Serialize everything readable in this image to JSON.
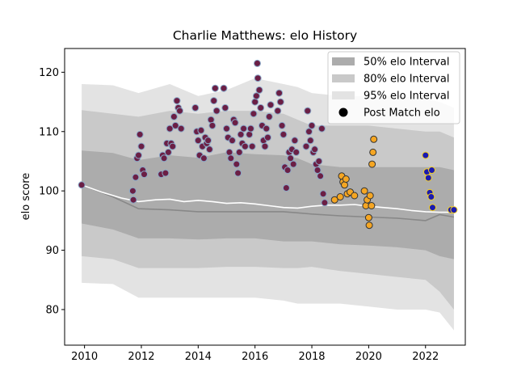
{
  "chart_data": {
    "type": "scatter",
    "title": "Charlie Matthews: elo History",
    "xlabel": "",
    "ylabel": "elo score",
    "xlim": [
      2009.3,
      2023.4
    ],
    "ylim": [
      74,
      124
    ],
    "xticks": [
      2010,
      2012,
      2014,
      2016,
      2018,
      2020,
      2022
    ],
    "yticks": [
      80,
      90,
      100,
      110,
      120
    ],
    "grid": false,
    "legend_position": "top-right",
    "colors": {
      "band_50": "#acacac",
      "band_80": "#c9c9c9",
      "band_95": "#e3e3e3",
      "median_line": "#888888",
      "post_match_line": "#ffffff",
      "marker_maroon": "#6b1f45",
      "marker_orange": "#f5a623",
      "marker_blue": "#1a1ab0"
    },
    "legend": [
      {
        "label": "50% elo Interval",
        "kind": "band",
        "color": "#acacac"
      },
      {
        "label": "80% elo Interval",
        "kind": "band",
        "color": "#c9c9c9"
      },
      {
        "label": "95% elo Interval",
        "kind": "band",
        "color": "#e3e3e3"
      },
      {
        "label": "Post Match elo",
        "kind": "marker",
        "color": "#000000"
      }
    ],
    "bands": {
      "x": [
        2009.9,
        2011.0,
        2011.9,
        2013.0,
        2014.0,
        2015.0,
        2016.0,
        2017.0,
        2017.5,
        2018.0,
        2019.0,
        2020.0,
        2021.0,
        2022.0,
        2022.5,
        2023.0
      ],
      "p95_upper": [
        118,
        117.8,
        116.5,
        118,
        116,
        117,
        119,
        118,
        117.5,
        116.5,
        116,
        116,
        116,
        115.5,
        115,
        114
      ],
      "p80_upper": [
        113.6,
        113,
        112.5,
        113.5,
        113,
        113.5,
        113.5,
        113,
        112,
        111,
        111,
        111,
        110.5,
        110,
        110,
        109
      ],
      "p50_upper": [
        106.8,
        106.4,
        105.2,
        106,
        105.6,
        106.5,
        106.2,
        106,
        105.5,
        104.5,
        104,
        104,
        104,
        104,
        104,
        103.5
      ],
      "median": [
        101,
        99,
        97,
        96.8,
        96.5,
        96.5,
        96.5,
        96.5,
        96.3,
        96.1,
        95.8,
        95.6,
        95.4,
        95,
        96,
        95.6
      ],
      "p50_lower": [
        94.5,
        93.5,
        92,
        92,
        91.8,
        92,
        92,
        91.5,
        91.5,
        91.5,
        91,
        90.8,
        90.5,
        90,
        89,
        88.5
      ],
      "p80_lower": [
        89,
        88.5,
        87,
        87,
        87,
        87.2,
        87.2,
        87,
        87,
        87.2,
        86.5,
        86,
        85.5,
        85,
        83,
        80
      ],
      "p95_lower": [
        84.5,
        84.3,
        82,
        82,
        82,
        82,
        82,
        81.5,
        81,
        81,
        81,
        80.5,
        80,
        80,
        79.5,
        76.5
      ]
    },
    "post_match_line": {
      "x": [
        2009.9,
        2010.6,
        2011.3,
        2011.9,
        2012.5,
        2013.0,
        2013.5,
        2014.0,
        2014.5,
        2015.0,
        2015.5,
        2016.0,
        2016.5,
        2017.0,
        2017.5,
        2018.0,
        2018.5,
        2019.0,
        2019.5,
        2020.0,
        2020.5,
        2021.0,
        2021.5,
        2022.0,
        2022.5,
        2023.0
      ],
      "y": [
        101,
        99.8,
        98.8,
        98.2,
        98.5,
        98.6,
        98.2,
        98.4,
        98.2,
        97.9,
        98.0,
        97.8,
        97.5,
        97.2,
        97.1,
        97.4,
        97.6,
        97.6,
        97.7,
        97.4,
        97.2,
        97.0,
        96.7,
        96.5,
        96.4,
        96.4
      ]
    },
    "series": [
      {
        "color": "#6b1f45",
        "points": [
          [
            2009.9,
            101
          ],
          [
            2011.7,
            100
          ],
          [
            2011.72,
            98.5
          ],
          [
            2011.8,
            102.3
          ],
          [
            2011.85,
            105.5
          ],
          [
            2011.9,
            106
          ],
          [
            2011.95,
            109.5
          ],
          [
            2012.0,
            107.5
          ],
          [
            2012.05,
            103.5
          ],
          [
            2012.1,
            102.8
          ],
          [
            2012.7,
            102.8
          ],
          [
            2012.75,
            106
          ],
          [
            2012.8,
            105.5
          ],
          [
            2012.85,
            103
          ],
          [
            2012.9,
            108
          ],
          [
            2012.95,
            106.5
          ],
          [
            2013.0,
            110.5
          ],
          [
            2013.05,
            108
          ],
          [
            2013.1,
            107.5
          ],
          [
            2013.15,
            112.5
          ],
          [
            2013.2,
            111
          ],
          [
            2013.25,
            115.2
          ],
          [
            2013.3,
            114
          ],
          [
            2013.35,
            113.5
          ],
          [
            2013.4,
            110.5
          ],
          [
            2013.9,
            114
          ],
          [
            2013.95,
            110
          ],
          [
            2014.0,
            108.5
          ],
          [
            2014.05,
            106
          ],
          [
            2014.1,
            110.2
          ],
          [
            2014.15,
            107.5
          ],
          [
            2014.2,
            105.5
          ],
          [
            2014.25,
            109
          ],
          [
            2014.3,
            108
          ],
          [
            2014.35,
            108.5
          ],
          [
            2014.4,
            107
          ],
          [
            2014.45,
            112
          ],
          [
            2014.5,
            111
          ],
          [
            2014.55,
            115.2
          ],
          [
            2014.6,
            117.3
          ],
          [
            2014.65,
            113.5
          ],
          [
            2014.9,
            117.3
          ],
          [
            2014.95,
            114
          ],
          [
            2015.0,
            110.5
          ],
          [
            2015.05,
            109
          ],
          [
            2015.1,
            106.5
          ],
          [
            2015.15,
            105.5
          ],
          [
            2015.2,
            108.5
          ],
          [
            2015.25,
            112
          ],
          [
            2015.3,
            111.5
          ],
          [
            2015.35,
            104.5
          ],
          [
            2015.4,
            103
          ],
          [
            2015.45,
            106.5
          ],
          [
            2015.5,
            109.5
          ],
          [
            2015.55,
            108
          ],
          [
            2015.6,
            110.5
          ],
          [
            2015.65,
            107.5
          ],
          [
            2015.8,
            109.5
          ],
          [
            2015.85,
            110.5
          ],
          [
            2015.9,
            107.5
          ],
          [
            2015.95,
            113
          ],
          [
            2016.0,
            115
          ],
          [
            2016.05,
            116
          ],
          [
            2016.08,
            121.5
          ],
          [
            2016.1,
            119
          ],
          [
            2016.15,
            117
          ],
          [
            2016.2,
            114
          ],
          [
            2016.25,
            111
          ],
          [
            2016.3,
            108.5
          ],
          [
            2016.35,
            107.5
          ],
          [
            2016.4,
            110.5
          ],
          [
            2016.45,
            109
          ],
          [
            2016.5,
            112.5
          ],
          [
            2016.55,
            114.5
          ],
          [
            2016.8,
            113.5
          ],
          [
            2016.85,
            116.5
          ],
          [
            2016.9,
            115
          ],
          [
            2016.95,
            111
          ],
          [
            2017.0,
            109.5
          ],
          [
            2017.05,
            104
          ],
          [
            2017.1,
            100.5
          ],
          [
            2017.15,
            103.5
          ],
          [
            2017.2,
            106.5
          ],
          [
            2017.25,
            105.5
          ],
          [
            2017.3,
            107
          ],
          [
            2017.35,
            104.5
          ],
          [
            2017.4,
            108.5
          ],
          [
            2017.45,
            106.5
          ],
          [
            2017.8,
            107.5
          ],
          [
            2017.85,
            113.5
          ],
          [
            2017.9,
            110
          ],
          [
            2017.95,
            108.5
          ],
          [
            2018.0,
            111
          ],
          [
            2018.05,
            106.5
          ],
          [
            2018.1,
            107
          ],
          [
            2018.15,
            104.5
          ],
          [
            2018.2,
            103.5
          ],
          [
            2018.25,
            105
          ],
          [
            2018.3,
            102.5
          ],
          [
            2018.35,
            110.5
          ],
          [
            2018.4,
            99.5
          ],
          [
            2018.45,
            98
          ]
        ]
      },
      {
        "color": "#f5a623",
        "points": [
          [
            2018.8,
            98.5
          ],
          [
            2019.0,
            99
          ],
          [
            2019.05,
            102.5
          ],
          [
            2019.1,
            101.5
          ],
          [
            2019.15,
            101
          ],
          [
            2019.2,
            102
          ],
          [
            2019.25,
            99.5
          ],
          [
            2019.35,
            99.8
          ],
          [
            2019.5,
            99.2
          ],
          [
            2019.85,
            100
          ],
          [
            2019.9,
            97.5
          ],
          [
            2019.95,
            98.5
          ],
          [
            2020.0,
            95.5
          ],
          [
            2020.02,
            94.2
          ],
          [
            2020.05,
            99.2
          ],
          [
            2020.1,
            97.5
          ],
          [
            2020.12,
            104.5
          ],
          [
            2020.15,
            106.5
          ],
          [
            2020.18,
            108.7
          ]
        ]
      },
      {
        "color": "#1a1ab0",
        "points": [
          [
            2022.0,
            106
          ],
          [
            2022.05,
            103.2
          ],
          [
            2022.1,
            102.2
          ],
          [
            2022.15,
            99.7
          ],
          [
            2022.2,
            99
          ],
          [
            2022.22,
            103.5
          ],
          [
            2022.25,
            97.2
          ],
          [
            2022.9,
            96.8
          ],
          [
            2023.0,
            96.8
          ]
        ]
      }
    ]
  }
}
